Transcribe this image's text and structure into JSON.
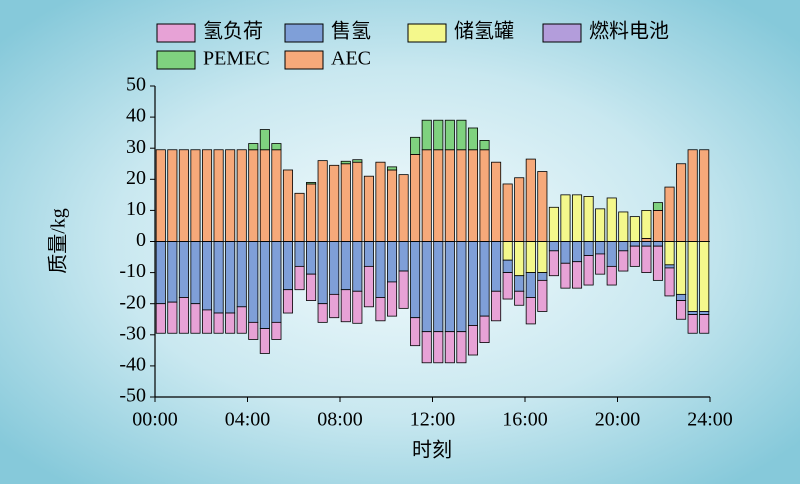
{
  "chart_data": {
    "type": "bar",
    "stacked": true,
    "ylabel": "质量/kg",
    "xlabel": "时刻",
    "xlim": [
      0,
      24
    ],
    "xticks": [
      {
        "value": 0,
        "label": "00:00"
      },
      {
        "value": 4,
        "label": "04:00"
      },
      {
        "value": 8,
        "label": "08:00"
      },
      {
        "value": 12,
        "label": "12:00"
      },
      {
        "value": 16,
        "label": "16:00"
      },
      {
        "value": 20,
        "label": "20:00"
      },
      {
        "value": 24,
        "label": "24:00"
      }
    ],
    "ylim": [
      -50,
      50
    ],
    "yticks": [
      -50,
      -40,
      -30,
      -20,
      -10,
      0,
      10,
      20,
      30,
      40,
      50
    ],
    "x": [
      0.25,
      0.75,
      1.25,
      1.75,
      2.25,
      2.75,
      3.25,
      3.75,
      4.25,
      4.75,
      5.25,
      5.75,
      6.25,
      6.75,
      7.25,
      7.75,
      8.25,
      8.75,
      9.25,
      9.75,
      10.25,
      10.75,
      11.25,
      11.75,
      12.25,
      12.75,
      13.25,
      13.75,
      14.25,
      14.75,
      15.25,
      15.75,
      16.25,
      16.75,
      17.25,
      17.75,
      18.25,
      18.75,
      19.25,
      19.75,
      20.25,
      20.75,
      21.25,
      21.75,
      22.25,
      22.75,
      23.25,
      23.75
    ],
    "series": [
      {
        "name": "氢负荷",
        "color": "#e7a2d6",
        "values": [
          -9.5,
          -10,
          -11.5,
          -9.5,
          -7.5,
          -6.5,
          -6.5,
          -8.5,
          -5.5,
          -8,
          -5.5,
          -7.5,
          -7.5,
          -8.5,
          -6,
          -7.5,
          -10.3,
          -10.3,
          -13,
          -7.5,
          -11,
          -12,
          -9,
          -10,
          -10,
          -10,
          -10,
          -9.5,
          -8.5,
          -9.5,
          -8.5,
          -4.5,
          -8.5,
          -10,
          -8,
          -8,
          -8.5,
          -9.5,
          -6.5,
          -6,
          -6.5,
          -6.5,
          -8.5,
          -11,
          -9,
          -6,
          -6,
          -6
        ]
      },
      {
        "name": "售氢",
        "color": "#7f9fd8",
        "values": [
          -20,
          -19.5,
          -18,
          -20,
          -22,
          -23,
          -23,
          -21,
          -26,
          -28,
          -26,
          -15.5,
          -8,
          -10.5,
          -20,
          -17,
          -15.5,
          -16,
          -8,
          -18,
          -13,
          -9.5,
          -24.5,
          -29,
          -29,
          -29,
          -29,
          -27,
          -24,
          -16,
          -4,
          -5,
          -8,
          -2.5,
          -3,
          -7,
          -6.5,
          -4.5,
          -4,
          -8,
          -3,
          -1.5,
          -1.5,
          -1.5,
          -1,
          -2,
          -1,
          -1
        ]
      },
      {
        "name": "储氢罐",
        "color": "#f4f88c",
        "values": [
          0,
          0,
          0,
          0,
          0,
          0,
          0,
          0,
          0,
          0,
          0,
          0,
          0,
          0,
          0,
          0,
          0,
          0,
          0,
          0,
          0,
          0,
          0,
          0,
          0,
          0,
          0,
          0,
          0,
          0,
          -6,
          -11,
          -10,
          -10,
          11,
          15,
          15,
          14.5,
          10.5,
          14,
          9.5,
          8,
          9,
          0,
          -7.5,
          -17,
          -22.5,
          -22.5
        ]
      },
      {
        "name": "燃料电池",
        "color": "#b39ddb",
        "values": [
          0,
          0,
          0,
          0,
          0,
          0,
          0,
          0,
          0,
          0,
          0,
          0,
          0,
          0,
          0,
          0,
          0,
          0,
          0,
          0,
          0,
          0,
          0,
          0,
          0,
          0,
          0,
          0,
          0,
          0,
          0,
          0,
          0,
          0,
          0,
          0,
          0,
          0,
          0,
          0,
          0,
          0,
          0,
          0,
          0,
          0,
          0,
          0
        ]
      },
      {
        "name": "PEMEC",
        "color": "#7fd27f",
        "values": [
          0,
          0,
          0,
          0,
          0,
          0,
          0,
          0,
          2,
          6.5,
          2,
          0,
          0,
          0.5,
          0,
          0,
          0.8,
          0.8,
          0,
          0,
          1,
          0,
          5.5,
          9.5,
          9.5,
          9.5,
          9.5,
          7,
          3,
          0,
          0,
          0,
          0,
          0,
          0,
          0,
          0,
          0,
          0,
          0,
          0,
          0,
          0,
          2.5,
          0,
          0,
          0,
          0
        ]
      },
      {
        "name": "AEC",
        "color": "#f6a97a",
        "values": [
          29.5,
          29.5,
          29.5,
          29.5,
          29.5,
          29.5,
          29.5,
          29.5,
          29.5,
          29.5,
          29.5,
          23,
          15.5,
          18.5,
          26,
          24.5,
          25,
          25.5,
          21,
          25.5,
          23,
          21.5,
          28,
          29.5,
          29.5,
          29.5,
          29.5,
          29.5,
          29.5,
          25.5,
          18.5,
          20.5,
          26.5,
          22.5,
          0,
          0,
          0,
          0,
          0,
          0,
          0,
          0,
          1,
          10,
          17.5,
          25,
          29.5,
          29.5
        ]
      }
    ]
  }
}
